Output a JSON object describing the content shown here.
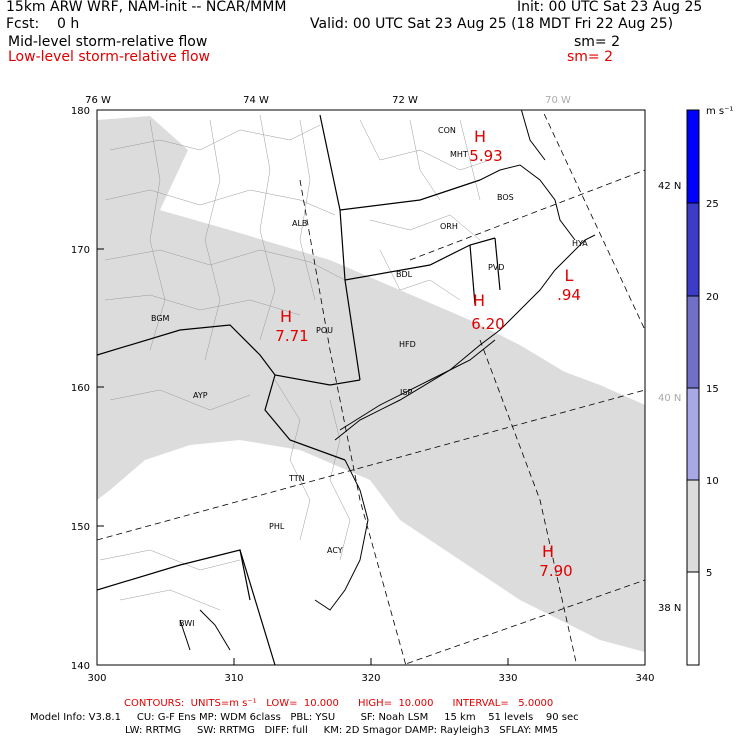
{
  "header": {
    "model": "15km ARW WRF, NAM-init -- NCAR/MMM",
    "init": "Init: 00 UTC Sat 23 Aug 25",
    "fcst": "Fcst:    0 h",
    "valid": "Valid: 00 UTC Sat 23 Aug 25 (18 MDT Fri 22 Aug 25)",
    "mid_field": "Mid-level storm-relative flow",
    "mid_sm": "sm= 2",
    "low_field": "Low-level storm-relative flow",
    "low_sm": "sm= 2"
  },
  "map": {
    "lon_labels": [
      "76 W",
      "74 W",
      "72 W",
      "70 W"
    ],
    "lat_labels": [
      "42 N",
      "40 N",
      "38 N"
    ],
    "x_ticks": [
      "300",
      "310",
      "320",
      "330",
      "340"
    ],
    "y_ticks": [
      "140",
      "150",
      "160",
      "170",
      "180"
    ],
    "cities": [
      "CON",
      "MHT",
      "BOS",
      "ORH",
      "HYA",
      "ALB",
      "PVD",
      "BDL",
      "BGM",
      "POU",
      "HFD",
      "AYP",
      "ISP",
      "TTN",
      "PHL",
      "ACY",
      "BWI"
    ],
    "highs_lows": [
      {
        "letter": "H",
        "value": "5.93"
      },
      {
        "letter": "H",
        "value": "7.71"
      },
      {
        "letter": "H",
        "value": "6.20"
      },
      {
        "letter": "L",
        "value": ".94"
      },
      {
        "letter": "H",
        "value": "7.90"
      }
    ],
    "shading_color": "#dcdcdc",
    "contour_color": "#e00000"
  },
  "colorbar": {
    "units": "m s⁻¹",
    "labels": [
      "25",
      "20",
      "15",
      "10",
      "5"
    ],
    "colors": [
      "#0000ff",
      "#3c3cc8",
      "#7070c8",
      "#a8a8e6",
      "#dcdcdc",
      "#ffffff"
    ]
  },
  "footer": {
    "contours": "CONTOURS:  UNITS=m s⁻¹   LOW=  10.000      HIGH=  10.000      INTERVAL=   5.0000",
    "model_info_1": "Model Info: V3.8.1     CU: G-F Ens MP: WDM 6class   PBL: YSU        SF: Noah LSM     15 km    51 levels    90 sec",
    "model_info_2": "LW: RRTMG     SW: RRTMG   DIFF: full     KM: 2D Smagor DAMP: Rayleigh3   SFLAY: MM5"
  }
}
